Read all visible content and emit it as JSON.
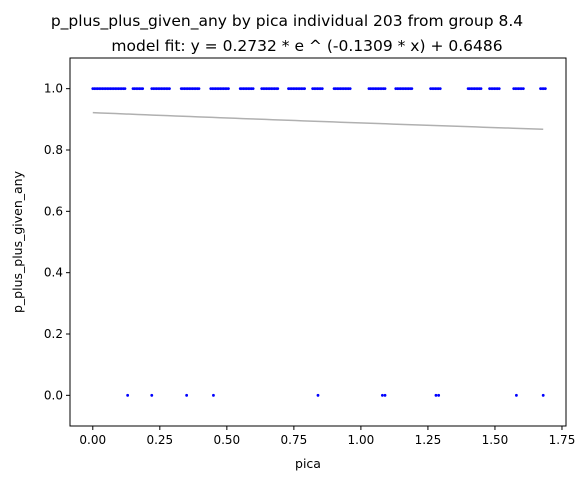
{
  "chart_data": {
    "type": "scatter",
    "title": "p_plus_plus_given_any by pica individual 203 from group 8.4",
    "subtitle": "model fit: y = 0.2732 * e ^ (-0.1309 * x) + 0.6486",
    "xlabel": "pica",
    "ylabel": "p_plus_plus_given_any",
    "xlim": [
      -0.085,
      1.765
    ],
    "ylim": [
      -0.1,
      1.1
    ],
    "xticks": [
      0.0,
      0.25,
      0.5,
      0.75,
      1.0,
      1.25,
      1.5,
      1.75
    ],
    "xtick_labels": [
      "0.00",
      "0.25",
      "0.50",
      "0.75",
      "1.00",
      "1.25",
      "1.50",
      "1.75"
    ],
    "yticks": [
      0.0,
      0.2,
      0.4,
      0.6,
      0.8,
      1.0
    ],
    "ytick_labels": [
      "0.0",
      "0.2",
      "0.4",
      "0.6",
      "0.8",
      "1.0"
    ],
    "grid": false,
    "colors": {
      "points": "#0000ff",
      "fit_line": "#b0b0b0"
    },
    "fit": {
      "a": 0.2732,
      "b": -0.1309,
      "c": 0.6486,
      "x_range": [
        0.0,
        1.68
      ]
    },
    "point_groups": [
      {
        "y": 1,
        "ranges": [
          [
            0.0,
            0.12
          ],
          [
            0.15,
            0.19
          ],
          [
            0.22,
            0.29
          ],
          [
            0.33,
            0.4
          ],
          [
            0.44,
            0.51
          ],
          [
            0.55,
            0.6
          ],
          [
            0.63,
            0.69
          ],
          [
            0.73,
            0.79
          ],
          [
            0.82,
            0.86
          ],
          [
            0.9,
            0.96
          ],
          [
            1.03,
            1.09
          ],
          [
            1.13,
            1.19
          ],
          [
            1.26,
            1.3
          ],
          [
            1.4,
            1.45
          ],
          [
            1.48,
            1.52
          ],
          [
            1.57,
            1.61
          ],
          [
            1.67,
            1.69
          ]
        ],
        "step": 0.006
      },
      {
        "y": 0,
        "points": [
          0.13,
          0.22,
          0.35,
          0.45,
          0.84,
          1.08,
          1.09,
          1.28,
          1.29,
          1.58,
          1.68
        ]
      }
    ]
  }
}
